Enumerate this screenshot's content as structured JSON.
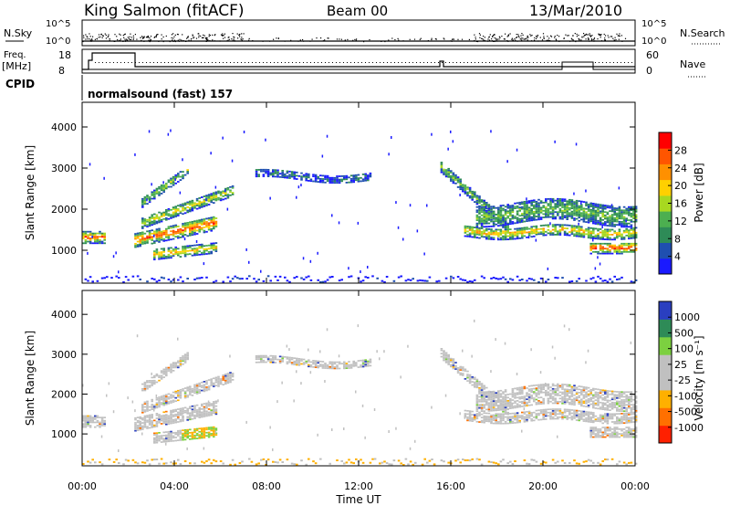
{
  "header": {
    "title": "King Salmon (fitACF)",
    "beam": "Beam 00",
    "date": "13/Mar/2010"
  },
  "top_panels": {
    "nsky_label": "N.Sky",
    "nsearch_label": "N.Search",
    "nsky_ticks": [
      "10^5",
      "10^0"
    ],
    "nsearch_ticks": [
      "10^5",
      "10^0"
    ],
    "freq_label_1": "Freq.",
    "freq_label_2": "[MHz]",
    "freq_ticks": [
      "18",
      "8"
    ],
    "nave_label": "Nave",
    "nave_ticks": [
      "60",
      "0"
    ],
    "cpid_label": "CPID",
    "cpid_text": "normalsound (fast) 157"
  },
  "chart_data": [
    {
      "type": "heatmap",
      "name": "power",
      "ylabel": "Slant Range [km]",
      "ylim": [
        200,
        4600
      ],
      "yticks": [
        "1000",
        "2000",
        "3000",
        "4000"
      ],
      "colorbar_label": "Power [dB]",
      "colorbar_ticks": [
        "4",
        "8",
        "12",
        "16",
        "20",
        "24",
        "28"
      ],
      "colors": [
        "#1a1aff",
        "#1f4fb0",
        "#2e8b57",
        "#4caf50",
        "#a8d820",
        "#ffd000",
        "#ff9000",
        "#ff5500",
        "#ff0000"
      ]
    },
    {
      "type": "heatmap",
      "name": "velocity",
      "ylabel": "Slant Range [km]",
      "xlabel": "Time UT",
      "ylim": [
        200,
        4600
      ],
      "yticks": [
        "1000",
        "2000",
        "3000",
        "4000"
      ],
      "xticks": [
        "00:00",
        "04:00",
        "08:00",
        "12:00",
        "16:00",
        "20:00",
        "00:00"
      ],
      "colorbar_label": "Velocity [m s⁻¹]",
      "colorbar_ticks": [
        "1000",
        "500",
        "100",
        "25",
        "-25",
        "-100",
        "-500",
        "-1000"
      ],
      "colors": [
        "#2a3fc0",
        "#2e8b57",
        "#7cd040",
        "#c0c0c0",
        "#c0c0c0",
        "#ffb000",
        "#ff7000",
        "#ff2000"
      ]
    }
  ]
}
